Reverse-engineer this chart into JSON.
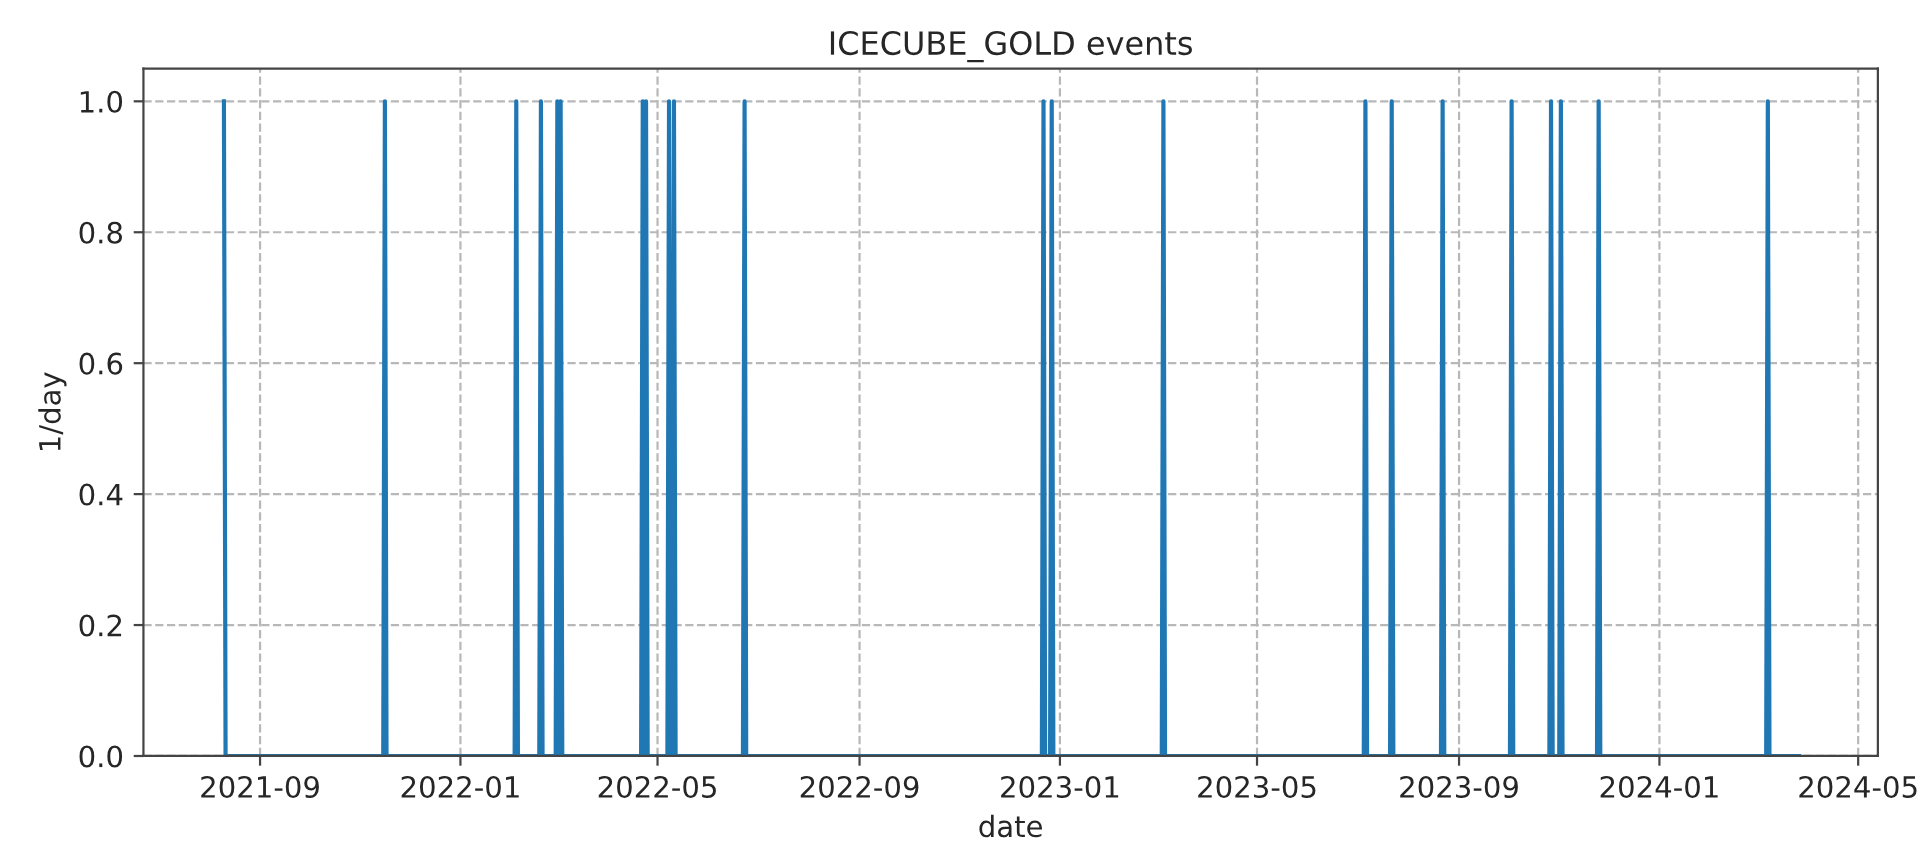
{
  "chart_data": {
    "type": "line",
    "title": "ICECUBE_GOLD events",
    "xlabel": "date",
    "ylabel": "1/day",
    "series": [
      {
        "color": "#1f77b4",
        "x": [
          "2021-08-10",
          "2021-08-11",
          "2021-11-15",
          "2021-11-16",
          "2021-11-17",
          "2022-02-03",
          "2022-02-04",
          "2022-02-05",
          "2022-02-18",
          "2022-02-19",
          "2022-02-20",
          "2022-02-28",
          "2022-03-01",
          "2022-03-02",
          "2022-03-03",
          "2022-03-04",
          "2022-04-21",
          "2022-04-22",
          "2022-04-23",
          "2022-04-24",
          "2022-04-25",
          "2022-05-07",
          "2022-05-08",
          "2022-05-09",
          "2022-05-10",
          "2022-05-11",
          "2022-05-12",
          "2022-06-22",
          "2022-06-23",
          "2022-06-24",
          "2022-12-21",
          "2022-12-22",
          "2022-12-23",
          "2022-12-26",
          "2022-12-27",
          "2022-12-28",
          "2023-03-04",
          "2023-03-05",
          "2023-03-06",
          "2023-07-05",
          "2023-07-06",
          "2023-07-07",
          "2023-07-21",
          "2023-07-22",
          "2023-07-23",
          "2023-08-21",
          "2023-08-22",
          "2023-08-23",
          "2023-10-02",
          "2023-10-03",
          "2023-10-04",
          "2023-10-26",
          "2023-10-27",
          "2023-10-28",
          "2023-11-01",
          "2023-11-02",
          "2023-11-03",
          "2023-11-24",
          "2023-11-25",
          "2023-11-26",
          "2024-03-06",
          "2024-03-07",
          "2024-03-08",
          "2024-03-26"
        ],
        "values": [
          1,
          0,
          0,
          1,
          0,
          0,
          1,
          0,
          0,
          1,
          0,
          0,
          1,
          0,
          1,
          0,
          0,
          1,
          0,
          1,
          0,
          0,
          1,
          0,
          0,
          1,
          0,
          0,
          1,
          0,
          0,
          1,
          0,
          0,
          1,
          0,
          0,
          1,
          0,
          0,
          1,
          0,
          0,
          1,
          0,
          0,
          1,
          0,
          0,
          1,
          0,
          0,
          1,
          0,
          0,
          1,
          0,
          0,
          1,
          0,
          0,
          1,
          0,
          0
        ]
      }
    ],
    "xlim": [
      "2021-06-22",
      "2024-05-13"
    ],
    "xticks": [
      "2021-09",
      "2022-01",
      "2022-05",
      "2022-09",
      "2023-01",
      "2023-05",
      "2023-09",
      "2024-01",
      "2024-05"
    ],
    "ylim": [
      0,
      1.05
    ],
    "yticks": [
      {
        "value": 0,
        "label": "0.0"
      },
      {
        "value": 0.2,
        "label": "0.2"
      },
      {
        "value": 0.4,
        "label": "0.4"
      },
      {
        "value": 0.6,
        "label": "0.6"
      },
      {
        "value": 0.8,
        "label": "0.8"
      },
      {
        "value": 1,
        "label": "1.0"
      }
    ],
    "grid": true,
    "line_style": "solid",
    "marker": "none"
  }
}
